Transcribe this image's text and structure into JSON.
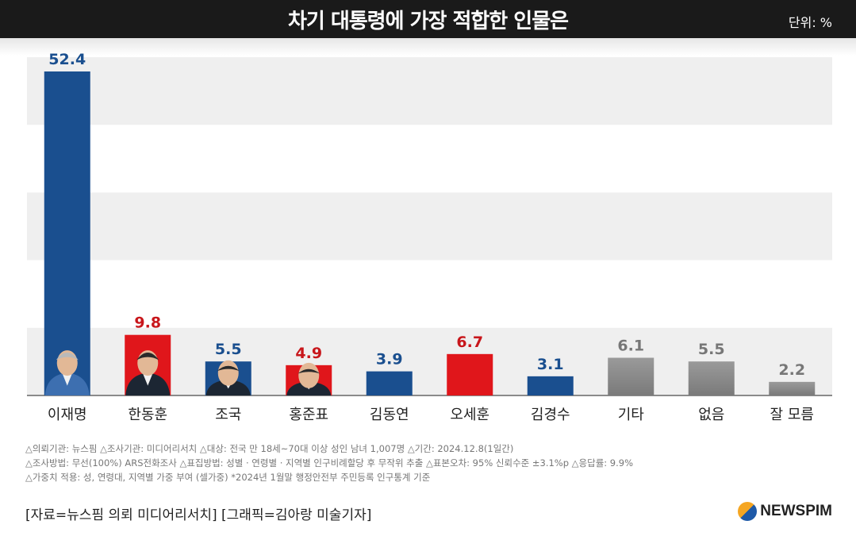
{
  "header": {
    "title": "차기 대통령에 가장 적합한 인물은",
    "unit": "단위: %"
  },
  "chart_data": {
    "type": "bar",
    "categories": [
      "이재명",
      "한동훈",
      "조국",
      "홍준표",
      "김동연",
      "오세훈",
      "김경수",
      "기타",
      "없음",
      "잘 모름"
    ],
    "values": [
      52.4,
      9.8,
      5.5,
      4.9,
      3.9,
      6.7,
      3.1,
      6.1,
      5.5,
      2.2
    ],
    "value_labels": [
      "52.4",
      "9.8",
      "5.5",
      "4.9",
      "3.9",
      "6.7",
      "3.1",
      "6.1",
      "5.5",
      "2.2"
    ],
    "bar_colors": [
      "#1a4f8f",
      "#e0161b",
      "#1a4f8f",
      "#e0161b",
      "#1a4f8f",
      "#e0161b",
      "#1a4f8f",
      "#8a8a8a",
      "#8a8a8a",
      "#8a8a8a"
    ],
    "label_colors": [
      "#1a4f8f",
      "#c8161b",
      "#1a4f8f",
      "#c8161b",
      "#1a4f8f",
      "#c8161b",
      "#1a4f8f",
      "#777777",
      "#777777",
      "#777777"
    ],
    "photos": [
      true,
      true,
      true,
      true,
      false,
      false,
      false,
      false,
      false,
      false
    ],
    "ylim": [
      0,
      52.4
    ],
    "grid": "alternating horizontal bands",
    "title": "차기 대통령에 가장 적합한 인물은",
    "unit": "단위: %"
  },
  "notes": [
    "△의뢰기관: 뉴스핌  △조사기관: 미디어리서치  △대상: 전국 만 18세~70대 이상 성인 남녀 1,007명  △기간: 2024.12.8(1일간)",
    "△조사방법: 무선(100%) ARS전화조사  △표집방법: 성별 · 연령별 · 지역별 인구비례할당 후 무작위 추출  △표본오차: 95% 신뢰수준 ±3.1%p  △응답률: 9.9%",
    "△가중치 적용: 성, 연령대, 지역별 가중 부여 (셀가중) *2024년 1월말 행정안전부 주민등록 인구통계 기준"
  ],
  "footer": {
    "source": "[자료=뉴스핌 의뢰 미디어리서치] [그래픽=김아랑 미술기자]",
    "logo": "NEWSPIM"
  }
}
